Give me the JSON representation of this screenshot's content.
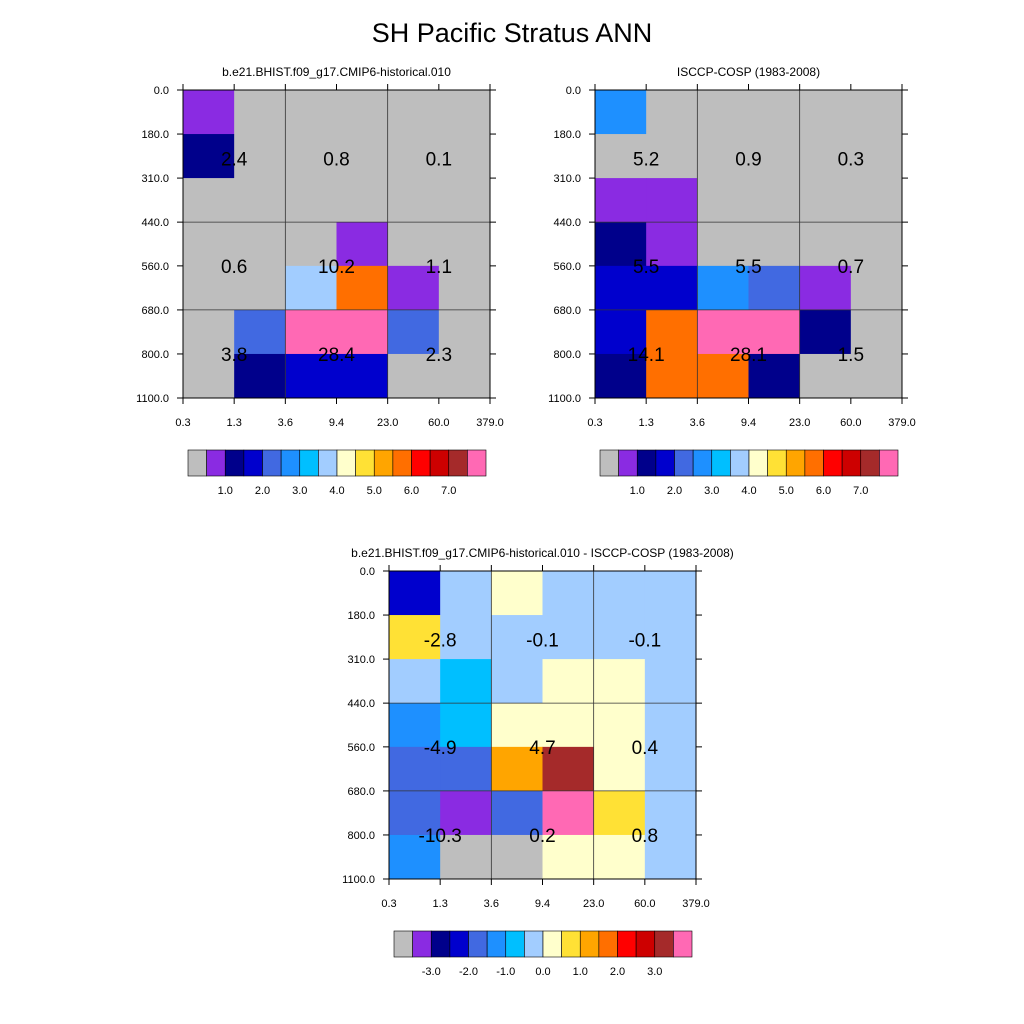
{
  "figure": {
    "title": "SH Pacific Stratus ANN"
  },
  "palette": {
    "abs": [
      "#bebebe",
      "#8a2be2",
      "#00008b",
      "#0000cd",
      "#4169e1",
      "#1e90ff",
      "#00bfff",
      "#a2cdff",
      "#ffffcc",
      "#ffe135",
      "#ffa500",
      "#ff6f00",
      "#ff0000",
      "#cd0000",
      "#a52a2a",
      "#ff69b4"
    ],
    "diff": [
      "#bebebe",
      "#8a2be2",
      "#00008b",
      "#0000cd",
      "#4169e1",
      "#1e90ff",
      "#00bfff",
      "#a2cdff",
      "#ffffcc",
      "#ffe135",
      "#ffa500",
      "#ff6f00",
      "#ff0000",
      "#cd0000",
      "#a52a2a",
      "#ff69b4"
    ]
  },
  "chart_data": [
    {
      "type": "heatmap",
      "title": "b.e21.BHIST.f09_g17.CMIP6-historical.010",
      "x_ticks": [
        "0.3",
        "1.3",
        "3.6",
        "9.4",
        "23.0",
        "60.0",
        "379.0"
      ],
      "y_ticks": [
        "0.0",
        "180.0",
        "310.0",
        "440.0",
        "560.0",
        "680.0",
        "800.0",
        "1100.0"
      ],
      "grid": true,
      "colorbar": {
        "palette": "abs",
        "labels": [
          "1.0",
          "2.0",
          "3.0",
          "4.0",
          "5.0",
          "6.0",
          "7.0"
        ]
      },
      "cells": [
        [
          1,
          0,
          0,
          0,
          0,
          0
        ],
        [
          2,
          0,
          0,
          0,
          0,
          0
        ],
        [
          0,
          0,
          0,
          0,
          0,
          0
        ],
        [
          0,
          0,
          0,
          1,
          0,
          0
        ],
        [
          0,
          0,
          7,
          11,
          1,
          0
        ],
        [
          0,
          4,
          15,
          15,
          4,
          0
        ],
        [
          0,
          2,
          3,
          3,
          0,
          0
        ]
      ],
      "block_values": [
        [
          "2.4",
          "0.8",
          "0.1"
        ],
        [
          "0.6",
          "10.2",
          "1.1"
        ],
        [
          "3.8",
          "28.4",
          "2.3"
        ]
      ]
    },
    {
      "type": "heatmap",
      "title": "ISCCP-COSP (1983-2008)",
      "x_ticks": [
        "0.3",
        "1.3",
        "3.6",
        "9.4",
        "23.0",
        "60.0",
        "379.0"
      ],
      "y_ticks": [
        "0.0",
        "180.0",
        "310.0",
        "440.0",
        "560.0",
        "680.0",
        "800.0",
        "1100.0"
      ],
      "grid": true,
      "colorbar": {
        "palette": "abs",
        "labels": [
          "1.0",
          "2.0",
          "3.0",
          "4.0",
          "5.0",
          "6.0",
          "7.0"
        ]
      },
      "cells": [
        [
          5,
          0,
          0,
          0,
          0,
          0
        ],
        [
          0,
          0,
          0,
          0,
          0,
          0
        ],
        [
          1,
          1,
          0,
          0,
          0,
          0
        ],
        [
          2,
          1,
          0,
          0,
          0,
          0
        ],
        [
          3,
          3,
          5,
          4,
          1,
          0
        ],
        [
          3,
          11,
          15,
          15,
          2,
          0
        ],
        [
          2,
          11,
          11,
          2,
          0,
          0
        ]
      ],
      "block_values": [
        [
          "5.2",
          "0.9",
          "0.3"
        ],
        [
          "5.5",
          "5.5",
          "0.7"
        ],
        [
          "14.1",
          "28.1",
          "1.5"
        ]
      ]
    },
    {
      "type": "heatmap",
      "title": "b.e21.BHIST.f09_g17.CMIP6-historical.010 - ISCCP-COSP (1983-2008)",
      "x_ticks": [
        "0.3",
        "1.3",
        "3.6",
        "9.4",
        "23.0",
        "60.0",
        "379.0"
      ],
      "y_ticks": [
        "0.0",
        "180.0",
        "310.0",
        "440.0",
        "560.0",
        "680.0",
        "800.0",
        "1100.0"
      ],
      "grid": true,
      "colorbar": {
        "palette": "diff",
        "labels": [
          "-3.0",
          "-2.0",
          "-1.0",
          "0.0",
          "1.0",
          "2.0",
          "3.0"
        ]
      },
      "cells": [
        [
          3,
          7,
          8,
          7,
          7,
          7
        ],
        [
          9,
          7,
          7,
          7,
          7,
          7
        ],
        [
          7,
          6,
          7,
          8,
          8,
          7
        ],
        [
          5,
          6,
          8,
          8,
          8,
          7
        ],
        [
          4,
          4,
          10,
          14,
          8,
          7
        ],
        [
          4,
          1,
          4,
          15,
          9,
          7
        ],
        [
          5,
          0,
          0,
          8,
          8,
          7
        ]
      ],
      "block_values": [
        [
          "-2.8",
          "-0.1",
          "-0.1"
        ],
        [
          "-4.9",
          "4.7",
          "0.4"
        ],
        [
          "-10.3",
          "0.2",
          "0.8"
        ]
      ]
    }
  ]
}
